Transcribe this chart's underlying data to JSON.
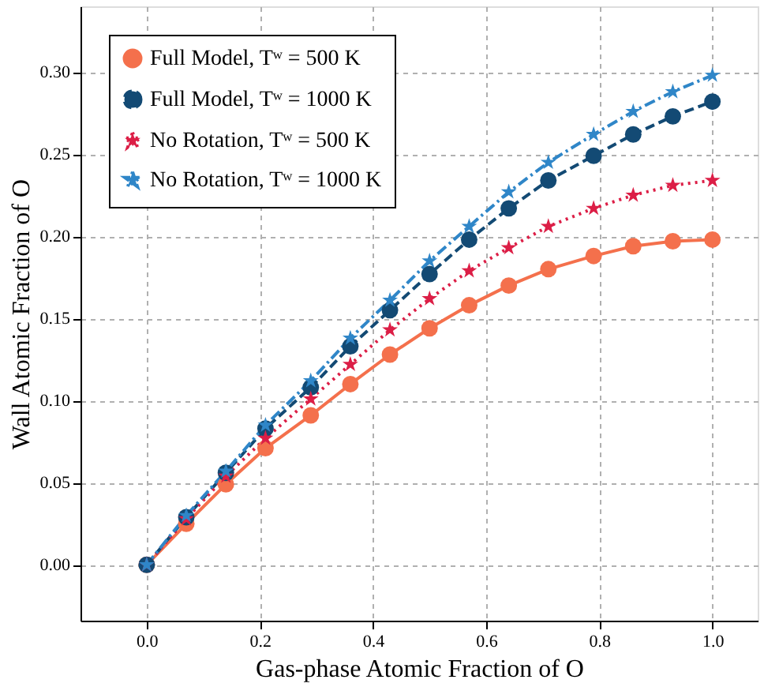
{
  "chart_data": {
    "type": "line",
    "xlabel": "Gas-phase Atomic Fraction of O",
    "ylabel": "Wall Atomic Fraction of O",
    "x": [
      0,
      0.07,
      0.14,
      0.21,
      0.29,
      0.36,
      0.43,
      0.5,
      0.57,
      0.64,
      0.71,
      0.79,
      0.86,
      0.93,
      1.0
    ],
    "xlim": [
      -0.117,
      1.08
    ],
    "ylim": [
      -0.034,
      0.34
    ],
    "xticks": [
      {
        "value": 0,
        "label": "0.0"
      },
      0.2,
      0.4,
      0.6,
      0.8,
      {
        "value": 1,
        "label": "1.0"
      }
    ],
    "yticks": [
      {
        "value": 0,
        "label": "0.00"
      },
      0.05,
      {
        "value": 0.1,
        "label": "0.10"
      },
      0.15,
      {
        "value": 0.2,
        "label": "0.20"
      },
      0.25,
      {
        "value": 0.3,
        "label": "0.30"
      }
    ],
    "grid": true,
    "legend": "top left",
    "series": [
      {
        "name": "Full Model, Tʷ = 500 K",
        "color": "#f4704c",
        "marker": "circle",
        "line_style": "solid",
        "values": [
          0,
          0.025,
          0.049,
          0.071,
          0.091,
          0.11,
          0.128,
          0.144,
          0.158,
          0.17,
          0.18,
          0.188,
          0.194,
          0.197,
          0.198
        ]
      },
      {
        "name": "Full Model, Tʷ = 1000 K",
        "color": "#134a74",
        "marker": "circle",
        "line_style": "dashed",
        "values": [
          0,
          0.029,
          0.056,
          0.083,
          0.108,
          0.133,
          0.155,
          0.177,
          0.198,
          0.217,
          0.234,
          0.249,
          0.262,
          0.273,
          0.282
        ]
      },
      {
        "name": "No Rotation, Tʷ = 500 K",
        "color": "#dc1e46",
        "marker": "star",
        "line_style": "dotted",
        "values": [
          0,
          0.028,
          0.054,
          0.077,
          0.101,
          0.122,
          0.143,
          0.162,
          0.179,
          0.193,
          0.206,
          0.217,
          0.225,
          0.231,
          0.234
        ]
      },
      {
        "name": "No Rotation, Tʷ = 1000 K",
        "color": "#2f86c8",
        "marker": "star",
        "line_style": "dashdot",
        "values": [
          0,
          0.03,
          0.057,
          0.085,
          0.112,
          0.138,
          0.161,
          0.185,
          0.206,
          0.227,
          0.245,
          0.262,
          0.276,
          0.288,
          0.298
        ]
      }
    ]
  }
}
